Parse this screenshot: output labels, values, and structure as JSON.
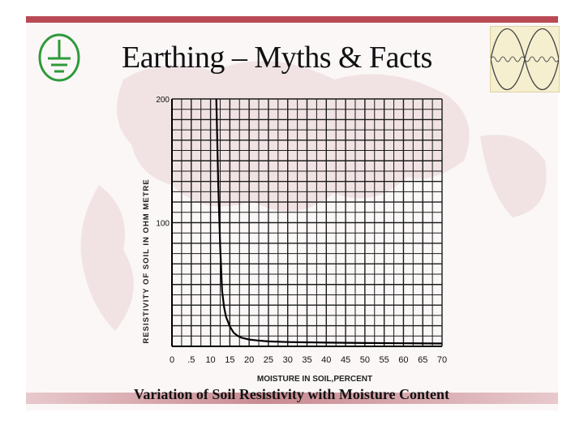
{
  "slide": {
    "title": "Earthing – Myths & Facts",
    "caption": "Variation of Soil Resistivity with Moisture Content",
    "accent_color": "#b94a55",
    "icons": [
      "earth-ground-icon",
      "sine-wave-icon"
    ]
  },
  "chart_data": {
    "type": "line",
    "xlabel": "MOISTURE IN SOIL,PERCENT",
    "ylabel": "RESISTIVITY OF SOIL IN OHM METRE",
    "x_ticks": [
      "0",
      ".5",
      "10",
      "15",
      "20",
      "25",
      "30",
      "35",
      "40",
      "45",
      "50",
      "55",
      "60",
      "65",
      "70"
    ],
    "y_ticks": [
      "100",
      "200"
    ],
    "xlim": [
      0,
      70
    ],
    "ylim": [
      0,
      200
    ],
    "grid": true,
    "x": [
      11.5,
      12,
      12.5,
      13,
      13.5,
      14,
      15,
      16,
      17,
      18,
      20,
      22,
      25,
      30,
      40,
      50,
      60,
      70
    ],
    "y": [
      200,
      130,
      80,
      45,
      32,
      24,
      16,
      11,
      8.5,
      7,
      5.5,
      4.8,
      4,
      3.5,
      3,
      2.7,
      2.5,
      2.3
    ]
  }
}
